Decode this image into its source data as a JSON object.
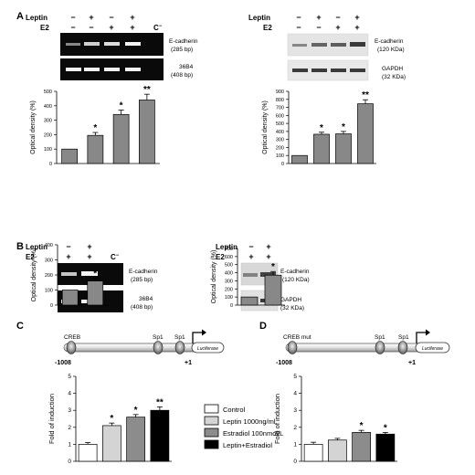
{
  "panels": {
    "A": "A",
    "B": "B",
    "C": "C",
    "D": "D"
  },
  "gel_labels": {
    "leptin": "Leptin",
    "e2": "E2",
    "minus": "−",
    "plus": "+",
    "c_minus": "C",
    "c_minus_sup": "−"
  },
  "bands": {
    "ecad_rna": "E-cadherin",
    "ecad_rna_size": "(285 bp)",
    "b36b4": "36B4",
    "b36b4_size": "(408 bp)",
    "ecad_prot": "E-cadherin",
    "ecad_prot_size": "(120 KDa)",
    "gapdh": "GAPDH",
    "gapdh_size": "(32 KDa)"
  },
  "row_A_treatments": {
    "leptin": [
      "−",
      "+",
      "−",
      "+"
    ],
    "e2": [
      "−",
      "−",
      "+",
      "+"
    ]
  },
  "row_B_treatments": {
    "leptin": [
      "−",
      "+"
    ],
    "e2": [
      "+",
      "+"
    ]
  },
  "promoter": {
    "creb": "CREB",
    "creb_mut": "CREB mut",
    "sp1": "Sp1",
    "luciferase": "Luciferase",
    "start": "-1008",
    "end": "+1"
  },
  "legend": [
    {
      "label": "Control",
      "color": "#ffffff"
    },
    {
      "label": "Leptin 1000ng/ml",
      "color": "#d4d4d4"
    },
    {
      "label": "Estradiol 100nmol/L",
      "color": "#8c8c8c"
    },
    {
      "label": "Leptin+Estradiol",
      "color": "#000000"
    }
  ],
  "chart_data": [
    {
      "type": "bar",
      "panel": "A-left",
      "ylabel": "Optical density (%)",
      "ylim": [
        0,
        500
      ],
      "yticks": [
        0,
        100,
        200,
        300,
        400,
        500
      ],
      "values": [
        100,
        195,
        340,
        440
      ],
      "errors": [
        0,
        20,
        30,
        40
      ],
      "annotations": [
        "",
        "*",
        "*",
        "**"
      ],
      "colors": [
        "#888888"
      ]
    },
    {
      "type": "bar",
      "panel": "A-right",
      "ylabel": "Optical density (%)",
      "ylim": [
        0,
        900
      ],
      "yticks": [
        0,
        100,
        200,
        300,
        400,
        500,
        600,
        700,
        800,
        900
      ],
      "values": [
        100,
        365,
        370,
        745
      ],
      "errors": [
        0,
        25,
        30,
        50
      ],
      "annotations": [
        "",
        "*",
        "*",
        "**"
      ],
      "colors": [
        "#888888"
      ]
    },
    {
      "type": "bar",
      "panel": "B-left",
      "ylabel": "Optical density (%)",
      "ylim": [
        0,
        400
      ],
      "yticks": [
        0,
        100,
        200,
        300,
        400
      ],
      "values": [
        100,
        160
      ],
      "errors": [
        0,
        20
      ],
      "annotations": [
        "",
        "*"
      ],
      "colors": [
        "#888888"
      ]
    },
    {
      "type": "bar",
      "panel": "B-right",
      "ylabel": "Optical density (%)",
      "ylim": [
        0,
        700
      ],
      "yticks": [
        0,
        100,
        200,
        300,
        400,
        500,
        600,
        700
      ],
      "values": [
        100,
        370
      ],
      "errors": [
        0,
        45
      ],
      "annotations": [
        "",
        "*"
      ],
      "colors": [
        "#888888"
      ]
    },
    {
      "type": "bar",
      "panel": "C",
      "ylabel": "Fold of induction",
      "ylim": [
        0,
        5
      ],
      "yticks": [
        0,
        1,
        2,
        3,
        4,
        5
      ],
      "values": [
        1.0,
        2.1,
        2.6,
        3.0
      ],
      "errors": [
        0.1,
        0.15,
        0.15,
        0.2
      ],
      "annotations": [
        "",
        "*",
        "*",
        "**"
      ],
      "colors": [
        "#ffffff",
        "#d4d4d4",
        "#8c8c8c",
        "#000000"
      ]
    },
    {
      "type": "bar",
      "panel": "D",
      "ylabel": "Fold of induction",
      "ylim": [
        0,
        5
      ],
      "yticks": [
        0,
        1,
        2,
        3,
        4,
        5
      ],
      "values": [
        1.0,
        1.25,
        1.7,
        1.6
      ],
      "errors": [
        0.12,
        0.1,
        0.12,
        0.1
      ],
      "annotations": [
        "",
        "",
        "*",
        "*"
      ],
      "colors": [
        "#ffffff",
        "#d4d4d4",
        "#8c8c8c",
        "#000000"
      ]
    }
  ]
}
